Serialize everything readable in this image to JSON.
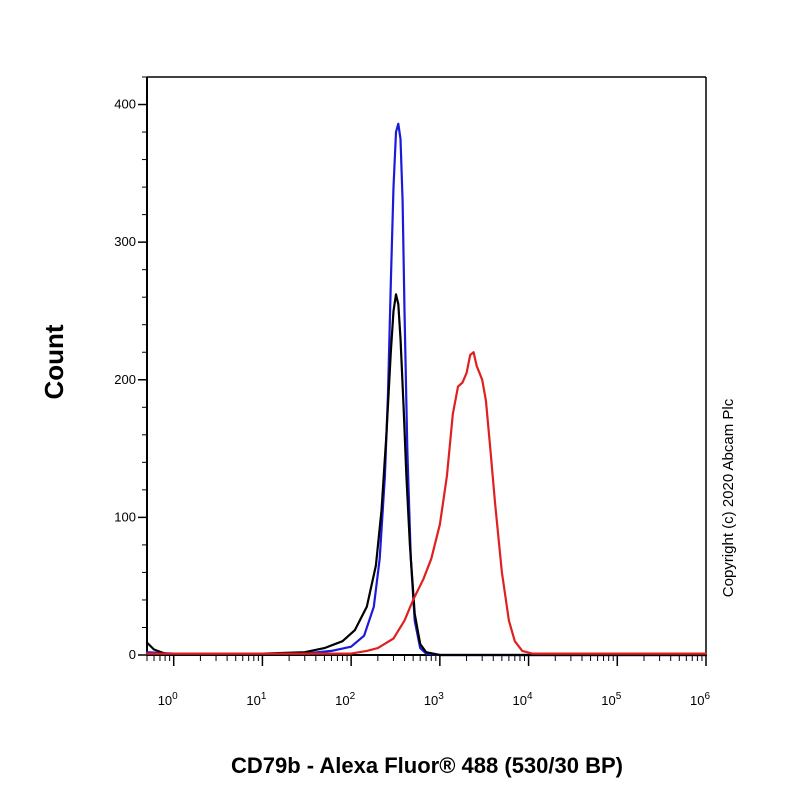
{
  "chart_data": {
    "type": "line",
    "title": "",
    "xlabel": "CD79b - Alexa Fluor® 488 (530/30 BP)",
    "ylabel": "Count",
    "x_scale": "log",
    "xlim": [
      0.5,
      1000000
    ],
    "ylim": [
      0,
      420
    ],
    "x_ticks": [
      {
        "value": 1,
        "base": "10",
        "exp": "0"
      },
      {
        "value": 10,
        "base": "10",
        "exp": "1"
      },
      {
        "value": 100,
        "base": "10",
        "exp": "2"
      },
      {
        "value": 1000,
        "base": "10",
        "exp": "3"
      },
      {
        "value": 10000,
        "base": "10",
        "exp": "4"
      },
      {
        "value": 100000,
        "base": "10",
        "exp": "5"
      },
      {
        "value": 1000000,
        "base": "10",
        "exp": "6"
      }
    ],
    "y_ticks": [
      {
        "value": 0,
        "label": "0"
      },
      {
        "value": 100,
        "label": "100"
      },
      {
        "value": 200,
        "label": "200"
      },
      {
        "value": 300,
        "label": "300"
      },
      {
        "value": 400,
        "label": "400"
      }
    ],
    "grid": false,
    "legend": "none",
    "annotation": "Copyright (c) 2020 Abcam Plc",
    "series": [
      {
        "color": "#1a1adb",
        "points": [
          [
            0.5,
            2
          ],
          [
            1,
            1
          ],
          [
            10,
            1
          ],
          [
            30,
            1
          ],
          [
            60,
            3
          ],
          [
            100,
            6
          ],
          [
            140,
            14
          ],
          [
            180,
            35
          ],
          [
            210,
            70
          ],
          [
            240,
            130
          ],
          [
            260,
            190
          ],
          [
            280,
            270
          ],
          [
            300,
            340
          ],
          [
            320,
            380
          ],
          [
            340,
            386
          ],
          [
            360,
            375
          ],
          [
            380,
            330
          ],
          [
            400,
            250
          ],
          [
            430,
            150
          ],
          [
            470,
            70
          ],
          [
            520,
            25
          ],
          [
            600,
            5
          ],
          [
            700,
            1
          ],
          [
            1000,
            0
          ],
          [
            1000000,
            0
          ]
        ]
      },
      {
        "color": "#000000",
        "points": [
          [
            0.5,
            9
          ],
          [
            0.6,
            4
          ],
          [
            0.8,
            1
          ],
          [
            10,
            1
          ],
          [
            30,
            2
          ],
          [
            50,
            5
          ],
          [
            80,
            10
          ],
          [
            110,
            18
          ],
          [
            150,
            35
          ],
          [
            190,
            65
          ],
          [
            220,
            105
          ],
          [
            250,
            160
          ],
          [
            280,
            220
          ],
          [
            300,
            250
          ],
          [
            320,
            262
          ],
          [
            340,
            255
          ],
          [
            360,
            230
          ],
          [
            390,
            180
          ],
          [
            420,
            130
          ],
          [
            460,
            80
          ],
          [
            520,
            30
          ],
          [
            600,
            8
          ],
          [
            700,
            2
          ],
          [
            1000,
            0
          ],
          [
            1000000,
            0
          ]
        ]
      },
      {
        "color": "#e02020",
        "points": [
          [
            0.5,
            1
          ],
          [
            1,
            1
          ],
          [
            10,
            1
          ],
          [
            100,
            1
          ],
          [
            150,
            3
          ],
          [
            200,
            5
          ],
          [
            300,
            12
          ],
          [
            400,
            25
          ],
          [
            500,
            40
          ],
          [
            650,
            55
          ],
          [
            800,
            70
          ],
          [
            1000,
            95
          ],
          [
            1200,
            130
          ],
          [
            1400,
            175
          ],
          [
            1600,
            195
          ],
          [
            1800,
            198
          ],
          [
            2000,
            205
          ],
          [
            2200,
            218
          ],
          [
            2400,
            220
          ],
          [
            2600,
            210
          ],
          [
            2800,
            205
          ],
          [
            3000,
            200
          ],
          [
            3300,
            185
          ],
          [
            3700,
            150
          ],
          [
            4200,
            110
          ],
          [
            5000,
            60
          ],
          [
            6000,
            25
          ],
          [
            7000,
            10
          ],
          [
            8500,
            3
          ],
          [
            11000,
            1
          ],
          [
            1000000,
            1
          ]
        ]
      }
    ]
  }
}
